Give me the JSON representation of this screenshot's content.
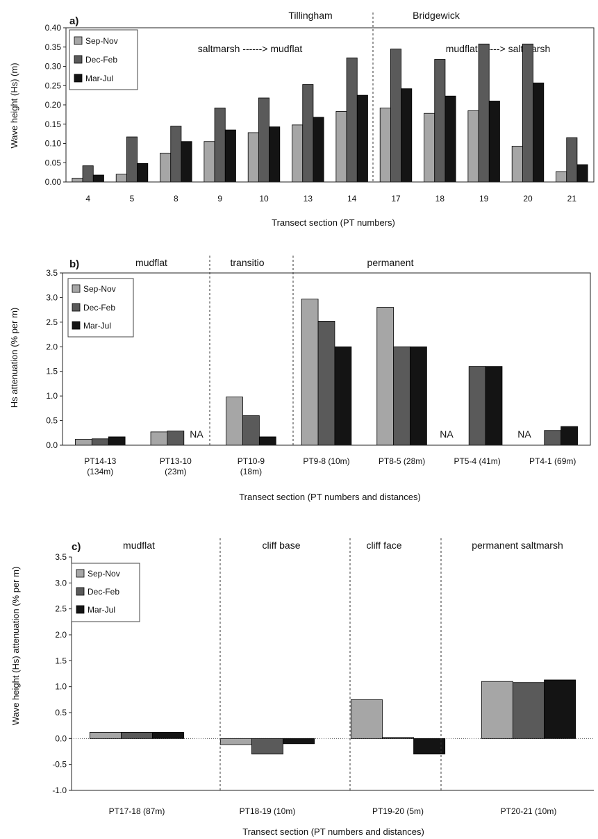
{
  "colors": {
    "sep_nov": "#a6a6a6",
    "dec_feb": "#5a5a5a",
    "mar_jul": "#141414",
    "frame": "#222222"
  },
  "chart_data": [
    {
      "type": "bar",
      "panel_label": "a)",
      "ylabel": "Wave height (Hs) (m)",
      "xlabel": "Transect section (PT numbers)",
      "ylim": [
        0,
        0.4
      ],
      "yticks": [
        "0.00",
        "0.05",
        "0.10",
        "0.15",
        "0.20",
        "0.25",
        "0.30",
        "0.35",
        "0.40"
      ],
      "categories": [
        "4",
        "5",
        "8",
        "9",
        "10",
        "13",
        "14",
        "17",
        "18",
        "19",
        "20",
        "21"
      ],
      "series": [
        {
          "name": "Sep-Nov",
          "values": [
            0.01,
            0.02,
            0.075,
            0.105,
            0.128,
            0.148,
            0.183,
            0.192,
            0.178,
            0.185,
            0.093,
            0.027
          ]
        },
        {
          "name": "Dec-Feb",
          "values": [
            0.042,
            0.117,
            0.145,
            0.192,
            0.218,
            0.253,
            0.322,
            0.345,
            0.318,
            0.358,
            0.358,
            0.115
          ]
        },
        {
          "name": "Mar-Jul",
          "values": [
            0.018,
            0.048,
            0.105,
            0.135,
            0.143,
            0.168,
            0.225,
            0.242,
            0.223,
            0.21,
            0.257,
            0.045
          ]
        }
      ],
      "legend": [
        "Sep-Nov",
        "Dec-Feb",
        "Mar-Jul"
      ],
      "region_labels": [
        "saltmarsh ------> mudflat",
        "mudflat ------> saltmarsh"
      ],
      "site_labels": [
        "Tillingham",
        "Bridgewick"
      ],
      "na_labels": []
    },
    {
      "type": "bar",
      "panel_label": "b)",
      "ylabel": "Hs attenuation (% per m)",
      "xlabel": "Transect section (PT numbers and distances)",
      "ylim": [
        0,
        3.5
      ],
      "yticks": [
        "0.0",
        "0.5",
        "1.0",
        "1.5",
        "2.0",
        "2.5",
        "3.0",
        "3.5"
      ],
      "categories": [
        [
          "PT14-13",
          "(134m)"
        ],
        [
          "PT13-10",
          "(23m)"
        ],
        [
          "PT10-9",
          "(18m)"
        ],
        [
          "PT9-8 (10m)"
        ],
        [
          "PT8-5 (28m)"
        ],
        [
          "PT5-4 (41m)"
        ],
        [
          "PT4-1 (69m)"
        ]
      ],
      "series": [
        {
          "name": "Sep-Nov",
          "values": [
            0.12,
            0.27,
            0.98,
            2.97,
            2.8,
            null,
            null
          ]
        },
        {
          "name": "Dec-Feb",
          "values": [
            0.13,
            0.29,
            0.6,
            2.52,
            2.0,
            1.6,
            0.3
          ]
        },
        {
          "name": "Mar-Jul",
          "values": [
            0.17,
            null,
            0.17,
            2.0,
            2.0,
            1.6,
            0.38
          ]
        }
      ],
      "legend": [
        "Sep-Nov",
        "Dec-Feb",
        "Mar-Jul"
      ],
      "region_labels": [
        "mudflat",
        "transitio",
        "permanent"
      ],
      "na_labels": [
        "NA",
        "NA",
        "NA"
      ]
    },
    {
      "type": "bar",
      "panel_label": "c)",
      "ylabel": "Wave height (Hs) attenuation (% per m)",
      "xlabel": "Transect section (PT numbers and distances)",
      "ylim": [
        -1.0,
        3.5
      ],
      "yticks": [
        "-1.0",
        "-0.5",
        "0.0",
        "0.5",
        "1.0",
        "1.5",
        "2.0",
        "2.5",
        "3.0",
        "3.5"
      ],
      "categories": [
        [
          "PT17-18 (87m)"
        ],
        [
          "PT18-19 (10m)"
        ],
        [
          "PT19-20 (5m)"
        ],
        [
          "PT20-21 (10m)"
        ]
      ],
      "series": [
        {
          "name": "Sep-Nov",
          "values": [
            0.12,
            -0.12,
            0.75,
            1.1
          ]
        },
        {
          "name": "Dec-Feb",
          "values": [
            0.12,
            -0.3,
            0.02,
            1.08
          ]
        },
        {
          "name": "Mar-Jul",
          "values": [
            0.12,
            -0.1,
            -0.3,
            1.13
          ]
        }
      ],
      "legend": [
        "Sep-Nov",
        "Dec-Feb",
        "Mar-Jul"
      ],
      "region_labels": [
        "mudflat",
        "cliff base",
        "cliff face",
        "permanent saltmarsh"
      ],
      "na_labels": []
    }
  ]
}
